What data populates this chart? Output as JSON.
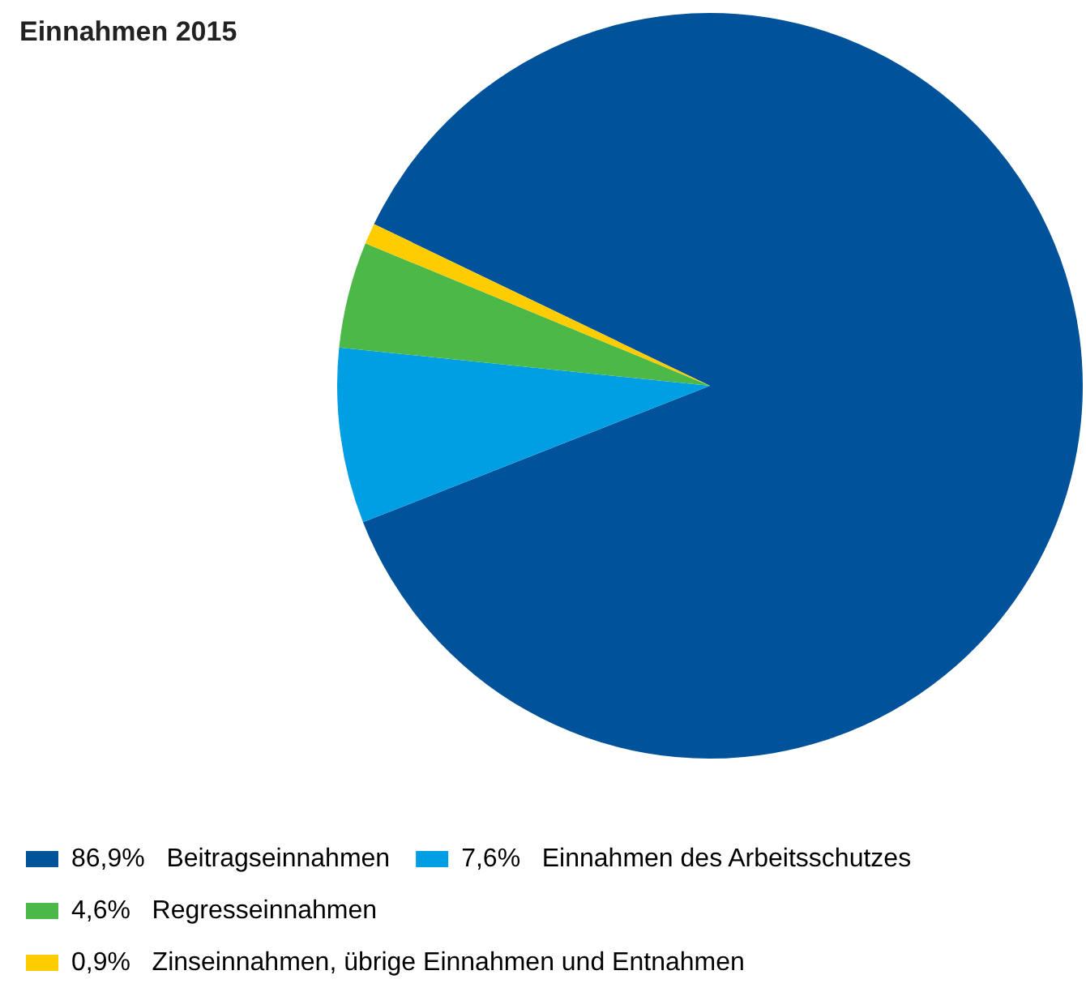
{
  "chart_data": {
    "type": "pie",
    "title": "Einnahmen 2015",
    "categories": [
      "Beitragseinnahmen",
      "Einnahmen des Arbeitsschutzes",
      "Regresseinnahmen",
      "Zinseinnahmen, übrige Einnahmen und Entnahmen"
    ],
    "values": [
      86.9,
      7.6,
      4.6,
      0.9
    ],
    "value_labels": [
      "86,9%",
      "7,6%",
      "4,6%",
      "0,9%"
    ],
    "colors": [
      "#00529b",
      "#009fe3",
      "#4cb848",
      "#ffcc00"
    ],
    "legend": "bottom"
  }
}
